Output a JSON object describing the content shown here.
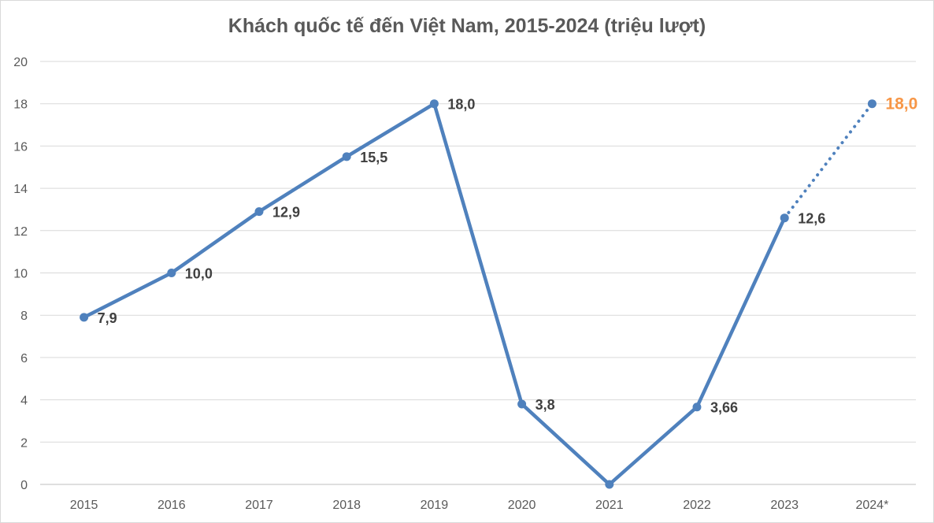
{
  "chart_data": {
    "type": "line",
    "title": "Khách quốc tế đến Việt Nam, 2015-2024 (triệu lượt)",
    "xlabel": "",
    "ylabel": "",
    "ylim": [
      0,
      20
    ],
    "yticks": [
      0,
      2,
      4,
      6,
      8,
      10,
      12,
      14,
      16,
      18,
      20
    ],
    "categories": [
      "2015",
      "2016",
      "2017",
      "2018",
      "2019",
      "2020",
      "2021",
      "2022",
      "2023",
      "2024*"
    ],
    "series": [
      {
        "values": [
          7.9,
          10.0,
          12.9,
          15.5,
          18.0,
          3.8,
          0,
          3.66,
          12.6,
          18.0
        ],
        "labels": [
          "7,9",
          "10,0",
          "12,9",
          "15,5",
          "18,0",
          "3,8",
          "",
          "3,66",
          "12,6",
          "18,0"
        ],
        "color": "#4f81bd",
        "projected_from_index": 8,
        "highlight_label_color": "#f79646"
      }
    ],
    "grid": true,
    "legend": "none"
  }
}
